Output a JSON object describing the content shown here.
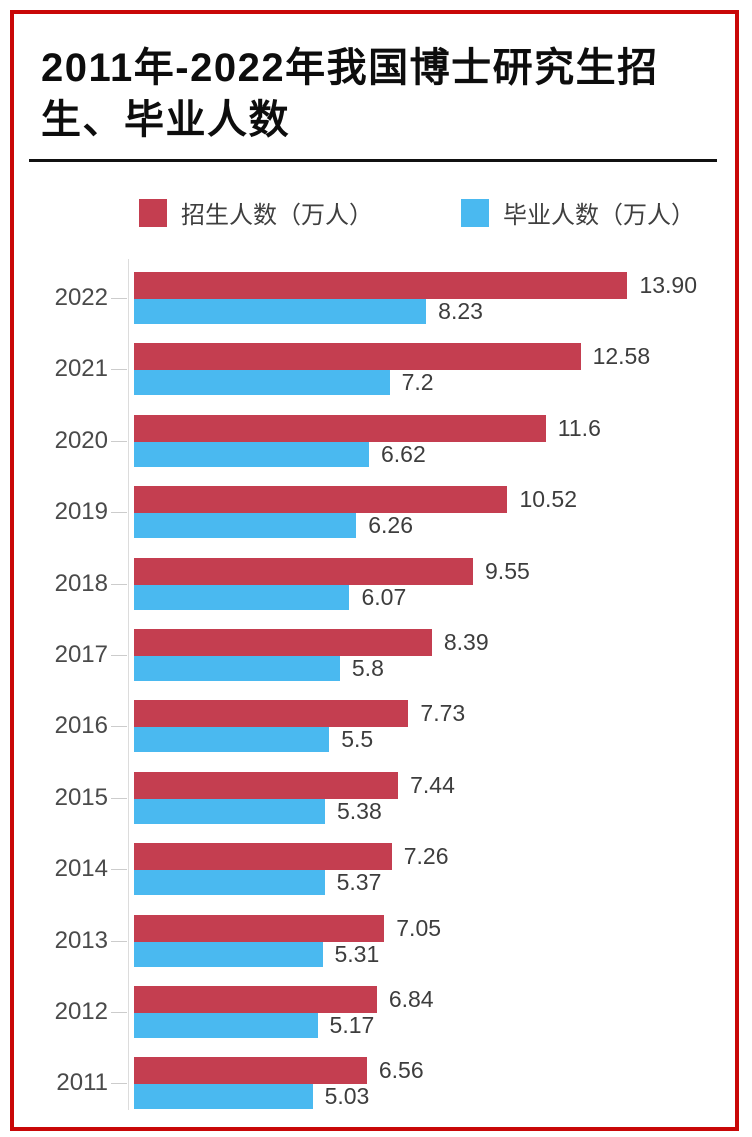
{
  "page": {
    "title": "2011年-2022年我国博士研究生招生、毕业人数",
    "border_color": "#c90707"
  },
  "legend": {
    "items": [
      {
        "label": "招生人数（万人）",
        "color": "#c43e50"
      },
      {
        "label": "毕业人数（万人）",
        "color": "#4ab9f0"
      }
    ]
  },
  "chart_data": {
    "type": "bar",
    "orientation": "horizontal",
    "title": "2011年-2022年我国博士研究生招生、毕业人数",
    "categories": [
      "2022",
      "2021",
      "2020",
      "2019",
      "2018",
      "2017",
      "2016",
      "2015",
      "2014",
      "2013",
      "2012",
      "2011"
    ],
    "series": [
      {
        "name": "招生人数（万人）",
        "color": "#c43e50",
        "values": [
          13.9,
          12.58,
          11.6,
          10.52,
          9.55,
          8.39,
          7.73,
          7.44,
          7.26,
          7.05,
          6.84,
          6.56
        ],
        "labels": [
          "13.90",
          "12.58",
          "11.6",
          "10.52",
          "9.55",
          "8.39",
          "7.73",
          "7.44",
          "7.26",
          "7.05",
          "6.84",
          "6.56"
        ]
      },
      {
        "name": "毕业人数（万人）",
        "color": "#4ab9f0",
        "values": [
          8.23,
          7.2,
          6.62,
          6.26,
          6.07,
          5.8,
          5.5,
          5.38,
          5.37,
          5.31,
          5.17,
          5.03
        ],
        "labels": [
          "8.23",
          "7.2",
          "6.62",
          "6.26",
          "6.07",
          "5.8",
          "5.5",
          "5.38",
          "5.37",
          "5.31",
          "5.17",
          "5.03"
        ]
      }
    ],
    "x_max": 14,
    "value_unit": "万人",
    "grid": false,
    "legend_position": "top",
    "axis_line_color": "#dcdcdc",
    "tick_color": "#cccccc"
  }
}
